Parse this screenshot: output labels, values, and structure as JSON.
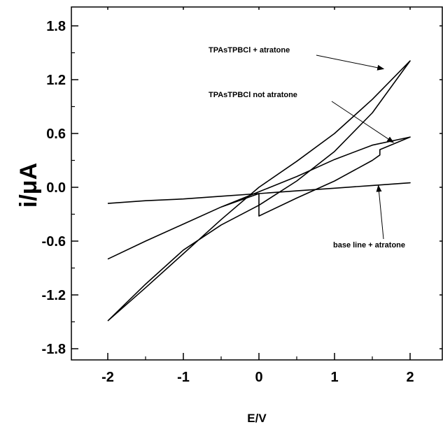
{
  "chart_data": {
    "type": "line",
    "title": "",
    "xlabel": "E/V",
    "ylabel": "i/μA",
    "xlim": [
      -2.5,
      2.5
    ],
    "ylim": [
      -2.1,
      2.0
    ],
    "x_ticks": [
      -2,
      -1,
      0,
      1,
      2
    ],
    "x_tick_labels": [
      "-2",
      "-1",
      "0",
      "1",
      "2"
    ],
    "y_ticks": [
      -1.8,
      -1.2,
      -0.6,
      0.0,
      0.6,
      1.2,
      1.8
    ],
    "y_tick_labels": [
      "-1.8",
      "-1.2",
      "-0.6",
      "0.0",
      "0.6",
      "1.2",
      "1.8"
    ],
    "grid": false,
    "series": [
      {
        "name": "TPAsTPBCl + atratone",
        "x": [
          -2.0,
          -1.5,
          -1.0,
          -0.5,
          0.0,
          0.5,
          1.0,
          1.5,
          2.0,
          1.5,
          1.0,
          0.5,
          0.0,
          -0.5,
          -1.0,
          -1.5,
          -2.0
        ],
        "y": [
          -1.49,
          -1.12,
          -0.74,
          -0.36,
          0.0,
          0.29,
          0.6,
          0.98,
          1.41,
          0.83,
          0.4,
          0.07,
          -0.2,
          -0.42,
          -0.7,
          -1.08,
          -1.49
        ]
      },
      {
        "name": "TPAsTPBCl not atratone",
        "x": [
          -2.0,
          -1.5,
          -1.0,
          -0.5,
          0.0,
          0.0,
          0.5,
          1.0,
          1.5,
          1.6,
          1.6,
          2.0,
          1.5,
          1.0,
          0.5,
          0.0,
          -0.5,
          -1.0,
          -1.5,
          -2.0
        ],
        "y": [
          -0.8,
          -0.6,
          -0.41,
          -0.22,
          -0.07,
          -0.32,
          -0.12,
          0.07,
          0.3,
          0.36,
          0.42,
          0.56,
          0.47,
          0.31,
          0.12,
          -0.05,
          -0.22,
          -0.41,
          -0.6,
          -0.8
        ]
      },
      {
        "name": "base line + atratone",
        "x": [
          -2.0,
          -1.5,
          -1.0,
          -0.5,
          0.0,
          0.5,
          1.0,
          1.5,
          2.0,
          1.5,
          1.0,
          0.5,
          0.0,
          -0.5,
          -1.0,
          -1.5,
          -2.0
        ],
        "y": [
          -0.18,
          -0.15,
          -0.13,
          -0.1,
          -0.07,
          -0.04,
          -0.01,
          0.02,
          0.05,
          0.02,
          -0.01,
          -0.04,
          -0.07,
          -0.1,
          -0.13,
          -0.15,
          -0.18
        ]
      }
    ],
    "annotations": [
      {
        "text": "TPAsTPBCl + atratone",
        "series": "TPAsTPBCl + atratone",
        "arrow_to": [
          1.65,
          1.32
        ]
      },
      {
        "text": "TPAsTPBCl not atratone",
        "series": "TPAsTPBCl not atratone",
        "arrow_to": [
          1.78,
          0.5
        ]
      },
      {
        "text": "base line + atratone",
        "series": "base line + atratone",
        "arrow_to": [
          1.58,
          0.02
        ]
      }
    ]
  }
}
